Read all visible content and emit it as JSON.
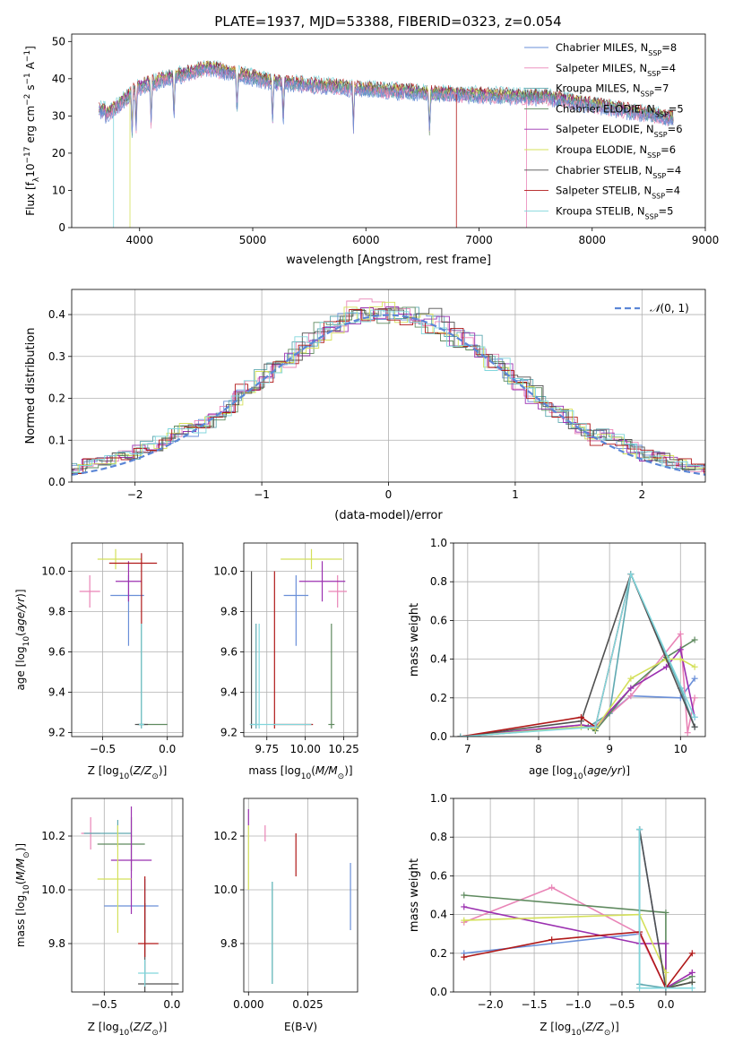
{
  "figure_title": "PLATE=1937, MJD=53388, FIBERID=0323, z=0.054",
  "colors": [
    "#6a8fd8",
    "#e985b7",
    "#5fa9b1",
    "#5f8a5f",
    "#9b30b0",
    "#d4e05a",
    "#505050",
    "#b01818",
    "#80d6dc"
  ],
  "chart_data": [
    {
      "id": "spectrum",
      "type": "line",
      "xlabel": "wavelength [Angstrom, rest frame]",
      "ylabel": "Flux [f_λ10^-17 erg cm^-2 s^-1 A^-1]",
      "xlim": [
        3400,
        9000
      ],
      "ylim": [
        0,
        52
      ],
      "xticks": [
        4000,
        5000,
        6000,
        7000,
        8000,
        9000
      ],
      "yticks": [
        0,
        10,
        20,
        30,
        40,
        50
      ],
      "legend": [
        "Chabrier MILES, N_SSP=8",
        "Salpeter MILES, N_SSP=4",
        "Kroupa MILES, N_SSP=7",
        "Chabrier ELODIE, N_SSP=5",
        "Salpeter ELODIE, N_SSP=6",
        "Kroupa ELODIE, N_SSP=6",
        "Chabrier STELIB, N_SSP=4",
        "Salpeter STELIB, N_SSP=4",
        "Kroupa STELIB, N_SSP=5"
      ],
      "legend_position": "top-right",
      "grid": false
    },
    {
      "id": "residuals",
      "type": "histogram",
      "xlabel": "(data-model)/error",
      "ylabel": "Normed distribution",
      "xlim": [
        -2.5,
        2.5
      ],
      "ylim": [
        0,
        0.46
      ],
      "xticks": [
        -2,
        -1,
        0,
        1,
        2
      ],
      "yticks": [
        0.0,
        0.1,
        0.2,
        0.3,
        0.4
      ],
      "reference": {
        "name": "N(0,1)",
        "mu": 0,
        "sigma": 1
      },
      "legend_position": "top-right",
      "grid": true
    },
    {
      "id": "age_vs_Z",
      "type": "errorbar",
      "xlabel": "Z [log10(Z/Z⊙)]",
      "ylabel": "age  [log10(age/yr)]",
      "xlim": [
        -0.74,
        0.12
      ],
      "ylim": [
        9.18,
        10.14
      ],
      "xticks": [
        -0.5,
        0.0
      ],
      "yticks": [
        9.2,
        9.4,
        9.6,
        9.8,
        10.0
      ],
      "grid": true,
      "points": [
        {
          "x": -0.3,
          "y": 9.88,
          "xerr": [
            0.14,
            0.12
          ],
          "yerr": [
            0.25,
            0.1
          ]
        },
        {
          "x": -0.6,
          "y": 9.9,
          "xerr": [
            0.08,
            0.08
          ],
          "yerr": [
            0.08,
            0.08
          ]
        },
        {
          "x": -0.2,
          "y": 9.24,
          "xerr": [
            0.03,
            0.03
          ],
          "yerr": [
            0.02,
            0.48
          ]
        },
        {
          "x": -0.2,
          "y": 9.24,
          "xerr": [
            0.03,
            0.2
          ],
          "yerr": [
            0.02,
            0.5
          ]
        },
        {
          "x": -0.3,
          "y": 9.95,
          "xerr": [
            0.1,
            0.1
          ],
          "yerr": [
            0.1,
            0.1
          ]
        },
        {
          "x": -0.4,
          "y": 10.06,
          "xerr": [
            0.14,
            0.2
          ],
          "yerr": [
            0.05,
            0.05
          ]
        },
        {
          "x": -0.2,
          "y": 9.24,
          "xerr": [
            0.05,
            0.05
          ],
          "yerr": [
            0.02,
            0.5
          ]
        },
        {
          "x": -0.2,
          "y": 10.04,
          "xerr": [
            0.25,
            0.12
          ],
          "yerr": [
            0.3,
            0.05
          ]
        },
        {
          "x": -0.2,
          "y": 9.24,
          "xerr": [
            0.02,
            0.02
          ],
          "yerr": [
            0.02,
            0.5
          ]
        }
      ]
    },
    {
      "id": "age_vs_mass",
      "type": "errorbar",
      "xlabel": "mass [log10(M/M⊙)]",
      "ylabel": "",
      "xlim": [
        9.6,
        10.34
      ],
      "ylim": [
        9.18,
        10.14
      ],
      "xticks": [
        9.75,
        10.0,
        10.25
      ],
      "yticks": [
        9.2,
        9.4,
        9.6,
        9.8,
        10.0
      ],
      "grid": true,
      "points": [
        {
          "x": 9.94,
          "y": 9.88,
          "xerr": [
            0.08,
            0.08
          ],
          "yerr": [
            0.25,
            0.1
          ]
        },
        {
          "x": 10.21,
          "y": 9.9,
          "xerr": [
            0.06,
            0.06
          ],
          "yerr": [
            0.08,
            0.08
          ]
        },
        {
          "x": 9.68,
          "y": 9.24,
          "xerr": [
            0.02,
            0.02
          ],
          "yerr": [
            0.02,
            0.5
          ]
        },
        {
          "x": 10.17,
          "y": 9.24,
          "xerr": [
            0.02,
            0.02
          ],
          "yerr": [
            0.02,
            0.5
          ]
        },
        {
          "x": 10.11,
          "y": 9.95,
          "xerr": [
            0.15,
            0.15
          ],
          "yerr": [
            0.1,
            0.1
          ]
        },
        {
          "x": 10.04,
          "y": 10.06,
          "xerr": [
            0.2,
            0.2
          ],
          "yerr": [
            0.05,
            0.05
          ]
        },
        {
          "x": 9.65,
          "y": 9.24,
          "xerr": [
            0.01,
            0.01
          ],
          "yerr": [
            0.02,
            0.76
          ]
        },
        {
          "x": 9.8,
          "y": 9.24,
          "xerr": [
            0.01,
            0.25
          ],
          "yerr": [
            0.02,
            0.76
          ]
        },
        {
          "x": 9.7,
          "y": 9.24,
          "xerr": [
            0.06,
            0.34
          ],
          "yerr": [
            0.02,
            0.5
          ]
        }
      ]
    },
    {
      "id": "weight_vs_age",
      "type": "line",
      "xlabel": "age  [log10(age/yr)]",
      "ylabel": "mass weight",
      "xlim": [
        6.8,
        10.35
      ],
      "ylim": [
        0,
        1
      ],
      "xticks": [
        7,
        8,
        9,
        10
      ],
      "yticks": [
        0.0,
        0.2,
        0.4,
        0.6,
        0.8,
        1.0
      ],
      "grid": true,
      "series": [
        {
          "x": [
            6.9,
            8.6,
            8.8,
            9.0,
            9.3,
            10.0,
            10.2
          ],
          "y": [
            0.0,
            0.05,
            0.05,
            0.12,
            0.21,
            0.2,
            0.3
          ]
        },
        {
          "x": [
            6.9,
            8.6,
            8.8,
            9.3,
            10.0,
            10.1,
            10.2
          ],
          "y": [
            0.0,
            0.06,
            0.05,
            0.21,
            0.53,
            0.02,
            0.2
          ]
        },
        {
          "x": [
            6.9,
            8.7,
            9.0,
            9.3,
            10.0,
            10.2
          ],
          "y": [
            0.0,
            0.05,
            0.12,
            0.84,
            0.25,
            0.05
          ]
        },
        {
          "x": [
            6.9,
            8.7,
            8.8,
            9.3,
            9.8,
            10.2
          ],
          "y": [
            0.0,
            0.05,
            0.03,
            0.25,
            0.41,
            0.5
          ]
        },
        {
          "x": [
            6.9,
            8.6,
            8.8,
            9.3,
            9.8,
            10.0,
            10.2
          ],
          "y": [
            0.0,
            0.06,
            0.05,
            0.25,
            0.36,
            0.45,
            0.1
          ]
        },
        {
          "x": [
            6.9,
            8.6,
            8.8,
            9.3,
            9.8,
            10.0,
            10.2
          ],
          "y": [
            0.0,
            0.05,
            0.04,
            0.3,
            0.4,
            0.4,
            0.36
          ]
        },
        {
          "x": [
            6.9,
            8.6,
            9.3,
            10.2
          ],
          "y": [
            0.0,
            0.08,
            0.84,
            0.05
          ]
        },
        {
          "x": [
            6.9,
            8.6,
            8.8,
            9.3
          ],
          "y": [
            0.0,
            0.1,
            0.05,
            0.84
          ]
        },
        {
          "x": [
            6.9,
            8.8,
            9.3,
            10.2
          ],
          "y": [
            0.0,
            0.05,
            0.84,
            0.1
          ]
        }
      ]
    },
    {
      "id": "mass_vs_Z",
      "type": "errorbar",
      "xlabel": "Z [log10(Z/Z⊙)]",
      "ylabel": "mass [log10(M/M⊙)]",
      "xlim": [
        -0.74,
        0.08
      ],
      "ylim": [
        9.62,
        10.34
      ],
      "xticks": [
        -0.5,
        0.0
      ],
      "yticks": [
        9.8,
        10.0,
        10.2
      ],
      "grid": true,
      "points": [
        {
          "x": -0.2,
          "y": 9.94,
          "xerr": [
            0.3,
            0.1
          ],
          "yerr": [
            0.1,
            0.1
          ]
        },
        {
          "x": -0.6,
          "y": 10.21,
          "xerr": [
            0.07,
            0.07
          ],
          "yerr": [
            0.06,
            0.06
          ]
        },
        {
          "x": -0.4,
          "y": 10.21,
          "xerr": [
            0.25,
            0.1
          ],
          "yerr": [
            0.05,
            0.05
          ]
        },
        {
          "x": -0.3,
          "y": 10.17,
          "xerr": [
            0.25,
            0.1
          ],
          "yerr": [
            0.1,
            0.1
          ]
        },
        {
          "x": -0.3,
          "y": 10.11,
          "xerr": [
            0.15,
            0.15
          ],
          "yerr": [
            0.2,
            0.2
          ]
        },
        {
          "x": -0.4,
          "y": 10.04,
          "xerr": [
            0.15,
            0.1
          ],
          "yerr": [
            0.2,
            0.2
          ]
        },
        {
          "x": -0.2,
          "y": 9.65,
          "xerr": [
            0.05,
            0.25
          ],
          "yerr": [
            0.05,
            0.3
          ]
        },
        {
          "x": -0.2,
          "y": 9.8,
          "xerr": [
            0.05,
            0.1
          ],
          "yerr": [
            0.05,
            0.25
          ]
        },
        {
          "x": -0.2,
          "y": 9.69,
          "xerr": [
            0.05,
            0.1
          ],
          "yerr": [
            0.05,
            0.05
          ]
        }
      ]
    },
    {
      "id": "mass_vs_ebv",
      "type": "errorbar",
      "xlabel": "E(B-V)",
      "ylabel": "",
      "xlim": [
        -0.002,
        0.046
      ],
      "ylim": [
        9.62,
        10.34
      ],
      "xticks": [
        0.0,
        0.025
      ],
      "yticks": [
        9.8,
        10.0,
        10.2
      ],
      "grid": true,
      "points": [
        {
          "x": 0.043,
          "y": 9.97,
          "xerr": [
            0,
            0
          ],
          "yerr": [
            0.12,
            0.13
          ]
        },
        {
          "x": 0.007,
          "y": 10.21,
          "xerr": [
            0,
            0
          ],
          "yerr": [
            0.03,
            0.03
          ]
        },
        {
          "x": 0.01,
          "y": 9.85,
          "xerr": [
            0,
            0
          ],
          "yerr": [
            0.2,
            0.18
          ]
        },
        {
          "x": 0.01,
          "y": 9.85,
          "xerr": [
            0,
            0
          ],
          "yerr": [
            0.2,
            0.18
          ]
        },
        {
          "x": 0.0,
          "y": 10.27,
          "xerr": [
            0,
            0
          ],
          "yerr": [
            0.03,
            0.03
          ]
        },
        {
          "x": 0.0,
          "y": 10.1,
          "xerr": [
            0,
            0
          ],
          "yerr": [
            0.1,
            0.14
          ]
        },
        {
          "x": 0.01,
          "y": 9.85,
          "xerr": [
            0,
            0
          ],
          "yerr": [
            0.2,
            0.18
          ]
        },
        {
          "x": 0.02,
          "y": 10.13,
          "xerr": [
            0,
            0
          ],
          "yerr": [
            0.08,
            0.08
          ]
        },
        {
          "x": 0.01,
          "y": 9.85,
          "xerr": [
            0,
            0
          ],
          "yerr": [
            0.2,
            0.18
          ]
        }
      ]
    },
    {
      "id": "weight_vs_Z",
      "type": "line",
      "xlabel": "Z [log10(Z/Z⊙)]",
      "ylabel": "mass weight",
      "xlim": [
        -2.42,
        0.45
      ],
      "ylim": [
        0,
        1
      ],
      "xticks": [
        -2.0,
        -1.5,
        -1.0,
        -0.5,
        0.0
      ],
      "yticks": [
        0.0,
        0.2,
        0.4,
        0.6,
        0.8,
        1.0
      ],
      "grid": true,
      "series": [
        {
          "x": [
            -2.3,
            -0.3,
            -0.3,
            0.0,
            0.3
          ],
          "y": [
            0.2,
            0.3,
            0.84,
            0.02,
            0.05
          ]
        },
        {
          "x": [
            -2.3,
            -1.3,
            -0.3,
            0.0,
            0.3
          ],
          "y": [
            0.36,
            0.54,
            0.3,
            0.02,
            0.1
          ]
        },
        {
          "x": [
            -0.3,
            -0.3,
            0.0,
            0.3
          ],
          "y": [
            0.84,
            0.04,
            0.02,
            0.05
          ]
        },
        {
          "x": [
            -2.3,
            0.0,
            0.0,
            0.3
          ],
          "y": [
            0.5,
            0.41,
            0.02,
            0.08
          ]
        },
        {
          "x": [
            -2.3,
            -0.3,
            0.0,
            0.0,
            0.3
          ],
          "y": [
            0.44,
            0.25,
            0.25,
            0.02,
            0.1
          ]
        },
        {
          "x": [
            -2.3,
            -0.3,
            0.0,
            0.0,
            0.3
          ],
          "y": [
            0.37,
            0.4,
            0.1,
            0.02,
            0.05
          ]
        },
        {
          "x": [
            -0.3,
            0.0,
            0.3
          ],
          "y": [
            0.84,
            0.02,
            0.05
          ]
        },
        {
          "x": [
            -2.3,
            -1.3,
            -0.3,
            0.0,
            0.3
          ],
          "y": [
            0.18,
            0.27,
            0.31,
            0.02,
            0.2
          ]
        },
        {
          "x": [
            -0.3,
            -0.3,
            0.0,
            0.3
          ],
          "y": [
            0.84,
            0.02,
            0.02,
            0.02
          ]
        }
      ]
    }
  ]
}
